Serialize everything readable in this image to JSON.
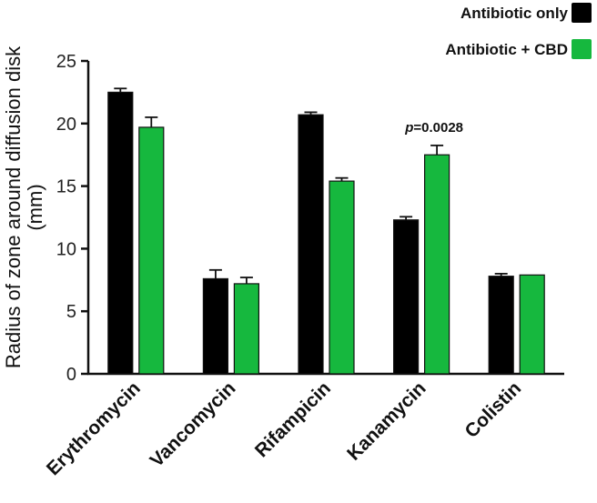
{
  "chart_data": {
    "type": "bar",
    "title": "",
    "xlabel": "",
    "ylabel": "Radius of zone around diffusion disk (mm)",
    "ylabel_lines": [
      "Radius of zone around diffusion disk",
      "(mm)"
    ],
    "ylim": [
      0,
      25
    ],
    "yticks": [
      0,
      5,
      10,
      15,
      20,
      25
    ],
    "grid": false,
    "legend_position": "top-right",
    "categories": [
      "Erythromycin",
      "Vancomycin",
      "Rifampicin",
      "Kanamycin",
      "Colistin"
    ],
    "series": [
      {
        "name": "Antibiotic only",
        "color": "#000000",
        "values": [
          22.5,
          7.6,
          20.7,
          12.3,
          7.8
        ],
        "errors": [
          0.3,
          0.7,
          0.2,
          0.25,
          0.2
        ]
      },
      {
        "name": "Antibiotic + CBD",
        "color": "#16b83e",
        "values": [
          19.7,
          7.2,
          15.4,
          17.5,
          7.9
        ],
        "errors": [
          0.8,
          0.5,
          0.25,
          0.75,
          0.0
        ]
      }
    ],
    "annotations": [
      {
        "category": "Kanamycin",
        "prefix": "p",
        "text": "=0.0028"
      }
    ]
  }
}
